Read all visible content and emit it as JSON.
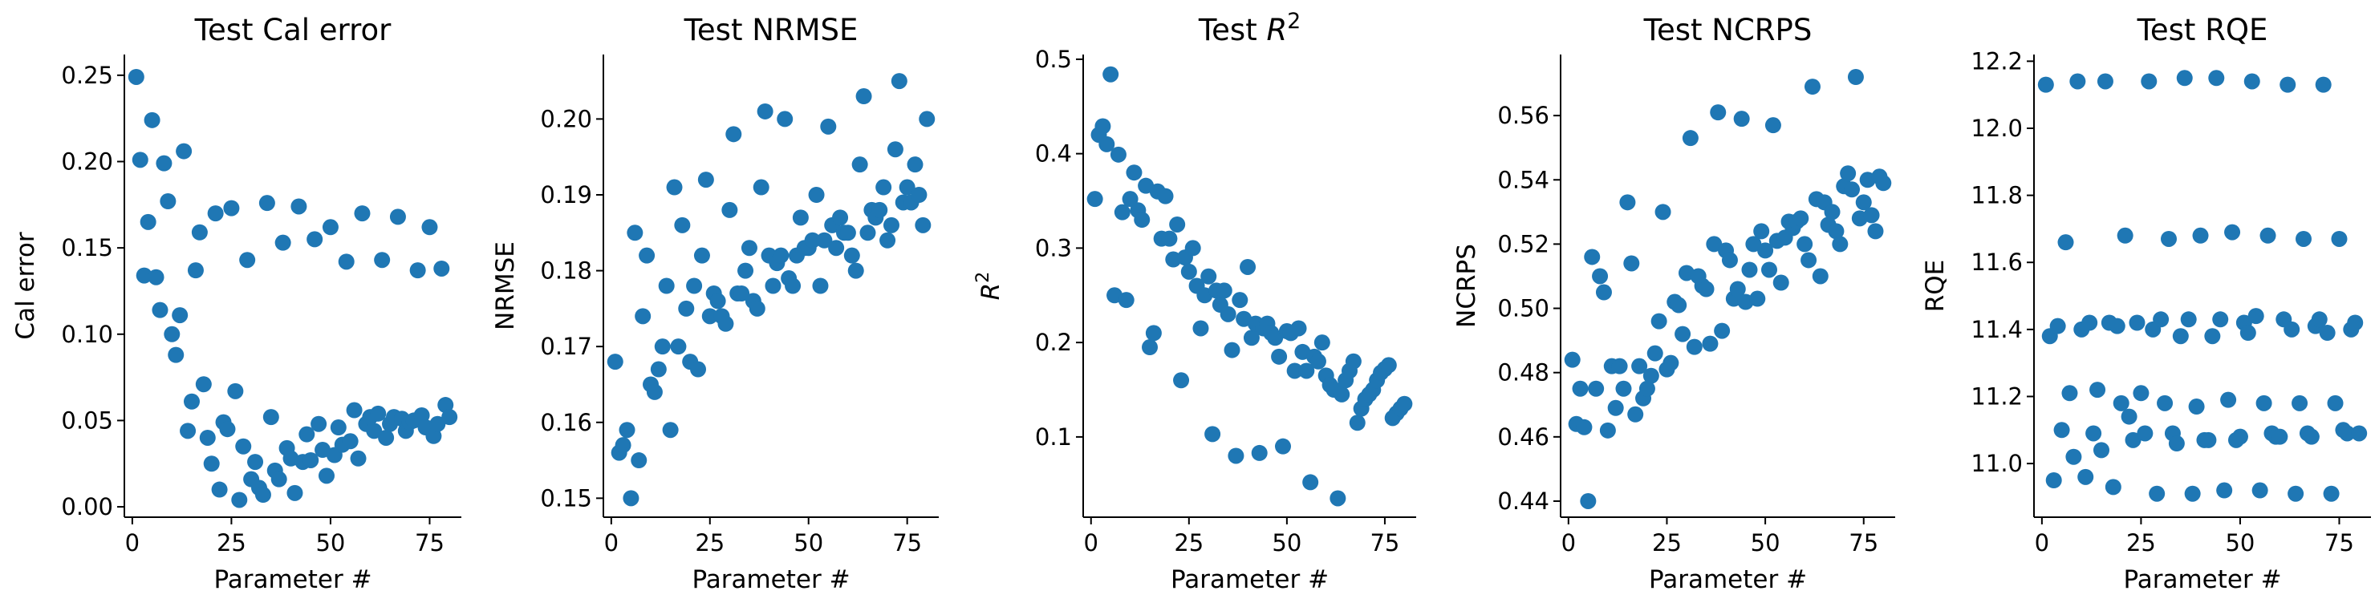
{
  "chart_data": [
    {
      "type": "scatter",
      "title": "Test Cal error",
      "xlabel": "Parameter #",
      "ylabel": "Cal error",
      "xlim": [
        -2,
        83
      ],
      "ylim": [
        -0.006,
        0.262
      ],
      "xticks": [
        0,
        25,
        50,
        75
      ],
      "yticks": [
        0.0,
        0.05,
        0.1,
        0.15,
        0.2,
        0.25
      ],
      "ytick_labels": [
        "0.00",
        "0.05",
        "0.10",
        "0.15",
        "0.20",
        "0.25"
      ],
      "color": "#1f77b4",
      "x": [
        1,
        2,
        3,
        4,
        5,
        6,
        7,
        8,
        9,
        10,
        11,
        12,
        13,
        14,
        15,
        16,
        17,
        18,
        19,
        20,
        21,
        22,
        23,
        24,
        25,
        26,
        27,
        28,
        29,
        30,
        31,
        32,
        33,
        34,
        35,
        36,
        37,
        38,
        39,
        40,
        41,
        42,
        43,
        44,
        45,
        46,
        47,
        48,
        49,
        50,
        51,
        52,
        53,
        54,
        55,
        56,
        57,
        58,
        59,
        60,
        61,
        62,
        63,
        64,
        65,
        66,
        67,
        68,
        69,
        70,
        71,
        72,
        73,
        74,
        75,
        76,
        77,
        78,
        79,
        80
      ],
      "y": [
        0.249,
        0.201,
        0.134,
        0.165,
        0.224,
        0.133,
        0.114,
        0.199,
        0.177,
        0.1,
        0.088,
        0.111,
        0.206,
        0.044,
        0.061,
        0.137,
        0.159,
        0.071,
        0.04,
        0.025,
        0.17,
        0.01,
        0.049,
        0.045,
        0.173,
        0.067,
        0.004,
        0.035,
        0.143,
        0.016,
        0.026,
        0.011,
        0.007,
        0.176,
        0.052,
        0.021,
        0.016,
        0.153,
        0.034,
        0.028,
        0.008,
        0.174,
        0.026,
        0.042,
        0.027,
        0.155,
        0.048,
        0.033,
        0.018,
        0.162,
        0.03,
        0.046,
        0.036,
        0.142,
        0.038,
        0.056,
        0.028,
        0.17,
        0.048,
        0.052,
        0.044,
        0.054,
        0.143,
        0.04,
        0.048,
        0.052,
        0.168,
        0.051,
        0.044,
        0.049,
        0.05,
        0.137,
        0.053,
        0.046,
        0.162,
        0.041,
        0.048,
        0.138,
        0.059,
        0.052
      ]
    },
    {
      "type": "scatter",
      "title": "Test NRMSE",
      "xlabel": "Parameter #",
      "ylabel": "NRMSE",
      "xlim": [
        -2,
        83
      ],
      "ylim": [
        0.1475,
        0.2085
      ],
      "xticks": [
        0,
        25,
        50,
        75
      ],
      "yticks": [
        0.15,
        0.16,
        0.17,
        0.18,
        0.19,
        0.2
      ],
      "ytick_labels": [
        "0.15",
        "0.16",
        "0.17",
        "0.18",
        "0.19",
        "0.20"
      ],
      "color": "#1f77b4",
      "x": [
        1,
        2,
        3,
        4,
        5,
        6,
        7,
        8,
        9,
        10,
        11,
        12,
        13,
        14,
        15,
        16,
        17,
        18,
        19,
        20,
        21,
        22,
        23,
        24,
        25,
        26,
        27,
        28,
        29,
        30,
        31,
        32,
        33,
        34,
        35,
        36,
        37,
        38,
        39,
        40,
        41,
        42,
        43,
        44,
        45,
        46,
        47,
        48,
        49,
        50,
        51,
        52,
        53,
        54,
        55,
        56,
        57,
        58,
        59,
        60,
        61,
        62,
        63,
        64,
        65,
        66,
        67,
        68,
        69,
        70,
        71,
        72,
        73,
        74,
        75,
        76,
        77,
        78,
        79,
        80
      ],
      "y": [
        0.168,
        0.156,
        0.157,
        0.159,
        0.15,
        0.185,
        0.155,
        0.174,
        0.182,
        0.165,
        0.164,
        0.167,
        0.17,
        0.178,
        0.159,
        0.191,
        0.17,
        0.186,
        0.175,
        0.168,
        0.178,
        0.167,
        0.182,
        0.192,
        0.174,
        0.177,
        0.176,
        0.174,
        0.173,
        0.188,
        0.198,
        0.177,
        0.177,
        0.18,
        0.183,
        0.176,
        0.175,
        0.191,
        0.201,
        0.182,
        0.178,
        0.181,
        0.182,
        0.2,
        0.179,
        0.178,
        0.182,
        0.187,
        0.183,
        0.183,
        0.184,
        0.19,
        0.178,
        0.184,
        0.199,
        0.186,
        0.183,
        0.187,
        0.185,
        0.185,
        0.182,
        0.18,
        0.194,
        0.203,
        0.185,
        0.188,
        0.187,
        0.188,
        0.191,
        0.184,
        0.186,
        0.196,
        0.205,
        0.189,
        0.191,
        0.189,
        0.194,
        0.19,
        0.186,
        0.2
      ]
    },
    {
      "type": "scatter",
      "title": "Test $R^2$",
      "xlabel": "Parameter #",
      "ylabel": "$R^2$",
      "xlim": [
        -2,
        83
      ],
      "ylim": [
        0.015,
        0.505
      ],
      "xticks": [
        0,
        25,
        50,
        75
      ],
      "yticks": [
        0.1,
        0.2,
        0.3,
        0.4,
        0.5
      ],
      "ytick_labels": [
        "0.1",
        "0.2",
        "0.3",
        "0.4",
        "0.5"
      ],
      "color": "#1f77b4",
      "x": [
        1,
        2,
        3,
        4,
        5,
        6,
        7,
        8,
        9,
        10,
        11,
        12,
        13,
        14,
        15,
        16,
        17,
        18,
        19,
        20,
        21,
        22,
        23,
        24,
        25,
        26,
        27,
        28,
        29,
        30,
        31,
        32,
        33,
        34,
        35,
        36,
        37,
        38,
        39,
        40,
        41,
        42,
        43,
        44,
        45,
        46,
        47,
        48,
        49,
        50,
        51,
        52,
        53,
        54,
        55,
        56,
        57,
        58,
        59,
        60,
        61,
        62,
        63,
        64,
        65,
        66,
        67,
        68,
        69,
        70,
        71,
        72,
        73,
        74,
        75,
        76,
        77,
        78,
        79,
        80
      ],
      "y": [
        0.352,
        0.42,
        0.429,
        0.41,
        0.484,
        0.25,
        0.399,
        0.338,
        0.245,
        0.352,
        0.38,
        0.34,
        0.33,
        0.366,
        0.195,
        0.21,
        0.36,
        0.31,
        0.355,
        0.31,
        0.288,
        0.325,
        0.16,
        0.29,
        0.275,
        0.3,
        0.26,
        0.215,
        0.25,
        0.27,
        0.103,
        0.255,
        0.24,
        0.255,
        0.23,
        0.192,
        0.08,
        0.245,
        0.225,
        0.28,
        0.205,
        0.22,
        0.083,
        0.215,
        0.22,
        0.21,
        0.205,
        0.185,
        0.09,
        0.212,
        0.21,
        0.17,
        0.215,
        0.19,
        0.17,
        0.052,
        0.185,
        0.18,
        0.2,
        0.165,
        0.155,
        0.15,
        0.035,
        0.145,
        0.16,
        0.17,
        0.18,
        0.115,
        0.13,
        0.14,
        0.145,
        0.15,
        0.16,
        0.168,
        0.172,
        0.176,
        0.12,
        0.125,
        0.13,
        0.135
      ]
    },
    {
      "type": "scatter",
      "title": "Test NCRPS",
      "xlabel": "Parameter #",
      "ylabel": "NCRPS",
      "xlim": [
        -2,
        83
      ],
      "ylim": [
        0.435,
        0.579
      ],
      "xticks": [
        0,
        25,
        50,
        75
      ],
      "yticks": [
        0.44,
        0.46,
        0.48,
        0.5,
        0.52,
        0.54,
        0.56
      ],
      "ytick_labels": [
        "0.44",
        "0.46",
        "0.48",
        "0.50",
        "0.52",
        "0.54",
        "0.56"
      ],
      "color": "#1f77b4",
      "x": [
        1,
        2,
        3,
        4,
        5,
        6,
        7,
        8,
        9,
        10,
        11,
        12,
        13,
        14,
        15,
        16,
        17,
        18,
        19,
        20,
        21,
        22,
        23,
        24,
        25,
        26,
        27,
        28,
        29,
        30,
        31,
        32,
        33,
        34,
        35,
        36,
        37,
        38,
        39,
        40,
        41,
        42,
        43,
        44,
        45,
        46,
        47,
        48,
        49,
        50,
        51,
        52,
        53,
        54,
        55,
        56,
        57,
        58,
        59,
        60,
        61,
        62,
        63,
        64,
        65,
        66,
        67,
        68,
        69,
        70,
        71,
        72,
        73,
        74,
        75,
        76,
        77,
        78,
        79,
        80
      ],
      "y": [
        0.484,
        0.464,
        0.475,
        0.463,
        0.44,
        0.516,
        0.475,
        0.51,
        0.505,
        0.462,
        0.482,
        0.469,
        0.482,
        0.475,
        0.533,
        0.514,
        0.467,
        0.482,
        0.472,
        0.475,
        0.479,
        0.486,
        0.496,
        0.53,
        0.481,
        0.483,
        0.502,
        0.501,
        0.492,
        0.511,
        0.553,
        0.488,
        0.51,
        0.507,
        0.506,
        0.489,
        0.52,
        0.561,
        0.493,
        0.518,
        0.515,
        0.503,
        0.506,
        0.559,
        0.502,
        0.512,
        0.52,
        0.503,
        0.524,
        0.518,
        0.512,
        0.557,
        0.521,
        0.508,
        0.522,
        0.527,
        0.525,
        0.527,
        0.528,
        0.52,
        0.515,
        0.569,
        0.534,
        0.51,
        0.533,
        0.526,
        0.53,
        0.524,
        0.52,
        0.538,
        0.542,
        0.537,
        0.572,
        0.528,
        0.533,
        0.54,
        0.529,
        0.524,
        0.541,
        0.539
      ]
    },
    {
      "type": "scatter",
      "title": "Test RQE",
      "xlabel": "Parameter #",
      "ylabel": "RQE",
      "xlim": [
        -2,
        83
      ],
      "ylim": [
        10.84,
        12.22
      ],
      "xticks": [
        0,
        25,
        50,
        75
      ],
      "yticks": [
        11.0,
        11.2,
        11.4,
        11.6,
        11.8,
        12.0,
        12.2
      ],
      "ytick_labels": [
        "11.0",
        "11.2",
        "11.4",
        "11.6",
        "11.8",
        "12.0",
        "12.2"
      ],
      "color": "#1f77b4",
      "x": [
        1,
        2,
        3,
        4,
        5,
        6,
        7,
        8,
        9,
        10,
        11,
        12,
        13,
        14,
        15,
        16,
        17,
        18,
        19,
        20,
        21,
        22,
        23,
        24,
        25,
        26,
        27,
        28,
        29,
        30,
        31,
        32,
        33,
        34,
        35,
        36,
        37,
        38,
        39,
        40,
        41,
        42,
        43,
        44,
        45,
        46,
        47,
        48,
        49,
        50,
        51,
        52,
        53,
        54,
        55,
        56,
        57,
        58,
        59,
        60,
        61,
        62,
        63,
        64,
        65,
        66,
        67,
        68,
        69,
        70,
        71,
        72,
        73,
        74,
        75,
        76,
        77,
        78,
        79,
        80
      ],
      "y": [
        12.13,
        11.38,
        10.95,
        11.41,
        11.1,
        11.66,
        11.21,
        11.02,
        12.14,
        11.4,
        10.96,
        11.42,
        11.09,
        11.22,
        11.04,
        12.14,
        11.42,
        10.93,
        11.41,
        11.18,
        11.68,
        11.14,
        11.07,
        11.42,
        11.21,
        11.09,
        12.14,
        11.4,
        10.91,
        11.43,
        11.18,
        11.67,
        11.09,
        11.06,
        11.38,
        12.15,
        11.43,
        10.91,
        11.17,
        11.68,
        11.07,
        11.07,
        11.38,
        12.15,
        11.43,
        10.92,
        11.19,
        11.69,
        11.07,
        11.08,
        11.42,
        11.39,
        12.14,
        11.44,
        10.92,
        11.18,
        11.68,
        11.09,
        11.08,
        11.08,
        11.43,
        12.13,
        11.4,
        10.91,
        11.18,
        11.67,
        11.09,
        11.08,
        11.41,
        11.43,
        12.13,
        11.39,
        10.91,
        11.18,
        11.67,
        11.1,
        11.09,
        11.4,
        11.42,
        11.09
      ]
    }
  ]
}
